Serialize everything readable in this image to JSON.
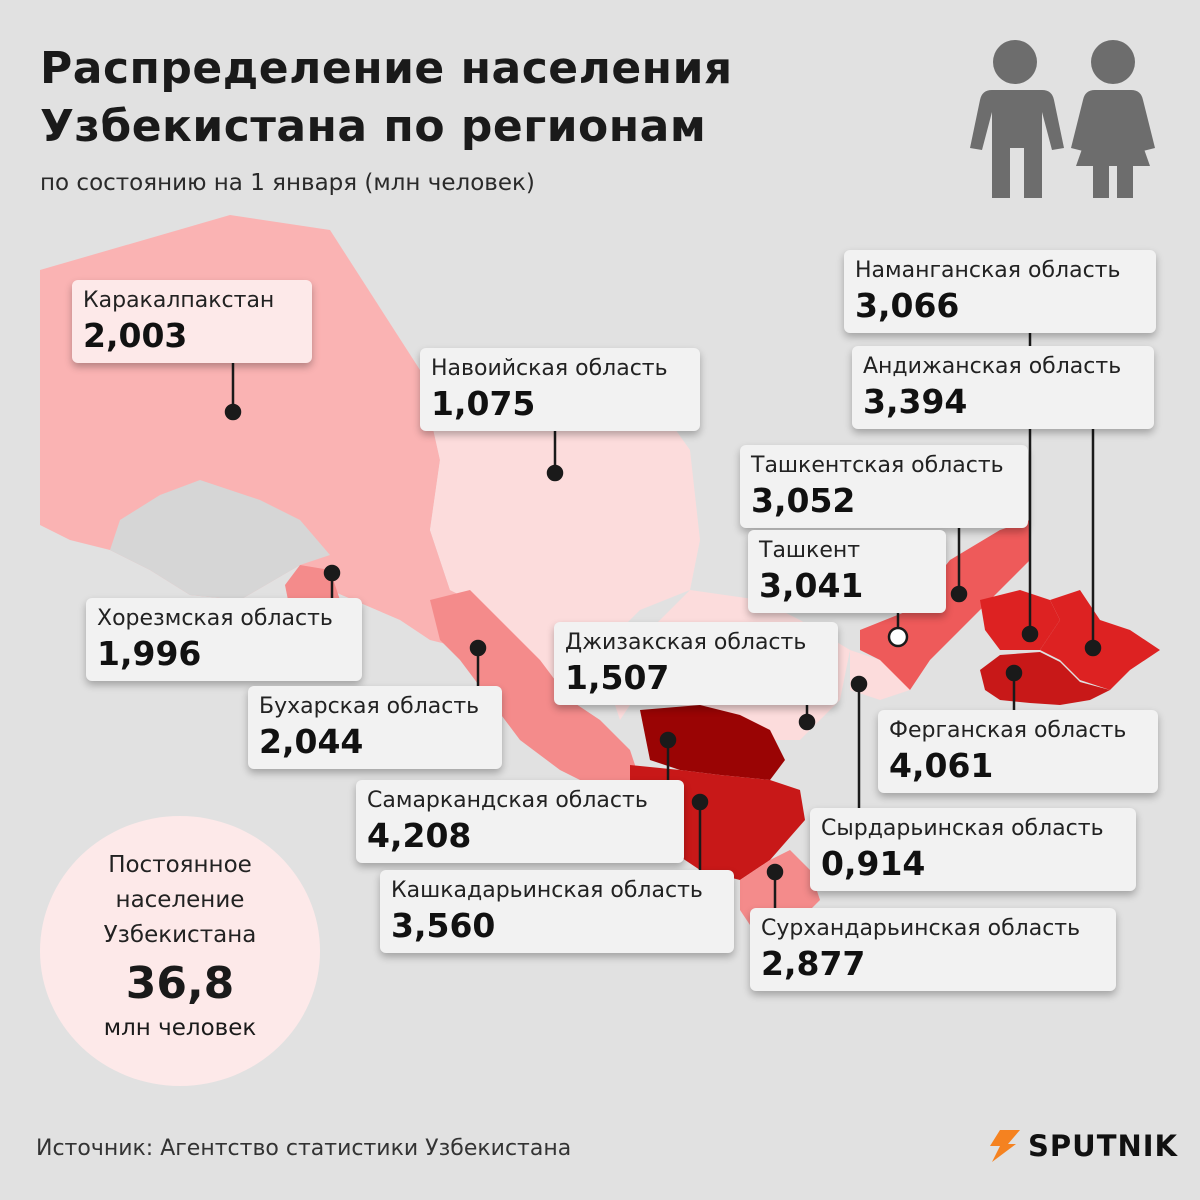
{
  "title": "Распределение населения Узбекистана по регионам",
  "subtitle": "по состоянию на 1 января (млн человек)",
  "icons": {
    "people": "people-icon",
    "logo": "sputnik-logo-icon"
  },
  "colors": {
    "background": "#e1e1e1",
    "lightest": "#fcdcdc",
    "light": "#fab3b3",
    "medium": "#f48b8b",
    "strong": "#ee5a5a",
    "red": "#dd2222",
    "dark": "#c81818",
    "darkest": "#9a0404"
  },
  "regions": [
    {
      "name": "Каракалпакстан",
      "value": "2,003"
    },
    {
      "name": "Навоийская область",
      "value": "1,075"
    },
    {
      "name": "Наманганская область",
      "value": "3,066"
    },
    {
      "name": "Андижанская область",
      "value": "3,394"
    },
    {
      "name": "Ташкентская область",
      "value": "3,052"
    },
    {
      "name": "Ташкент",
      "value": "3,041"
    },
    {
      "name": "Хорезмская область",
      "value": "1,996"
    },
    {
      "name": "Джизакская область",
      "value": "1,507"
    },
    {
      "name": "Бухарская область",
      "value": "2,044"
    },
    {
      "name": "Ферганская область",
      "value": "4,061"
    },
    {
      "name": "Самаркандская область",
      "value": "4,208"
    },
    {
      "name": "Сырдарьинская область",
      "value": "0,914"
    },
    {
      "name": "Кашкадарьинская область",
      "value": "3,560"
    },
    {
      "name": "Сурхандарьинская область",
      "value": "2,877"
    }
  ],
  "total": {
    "caption": "Постоянное\nнаселение\nУзбекистана",
    "value": "36,8",
    "unit": "млн человек"
  },
  "source": "Источник: Агентство статистики Узбекистана",
  "logo_text": "SPUTNIK"
}
